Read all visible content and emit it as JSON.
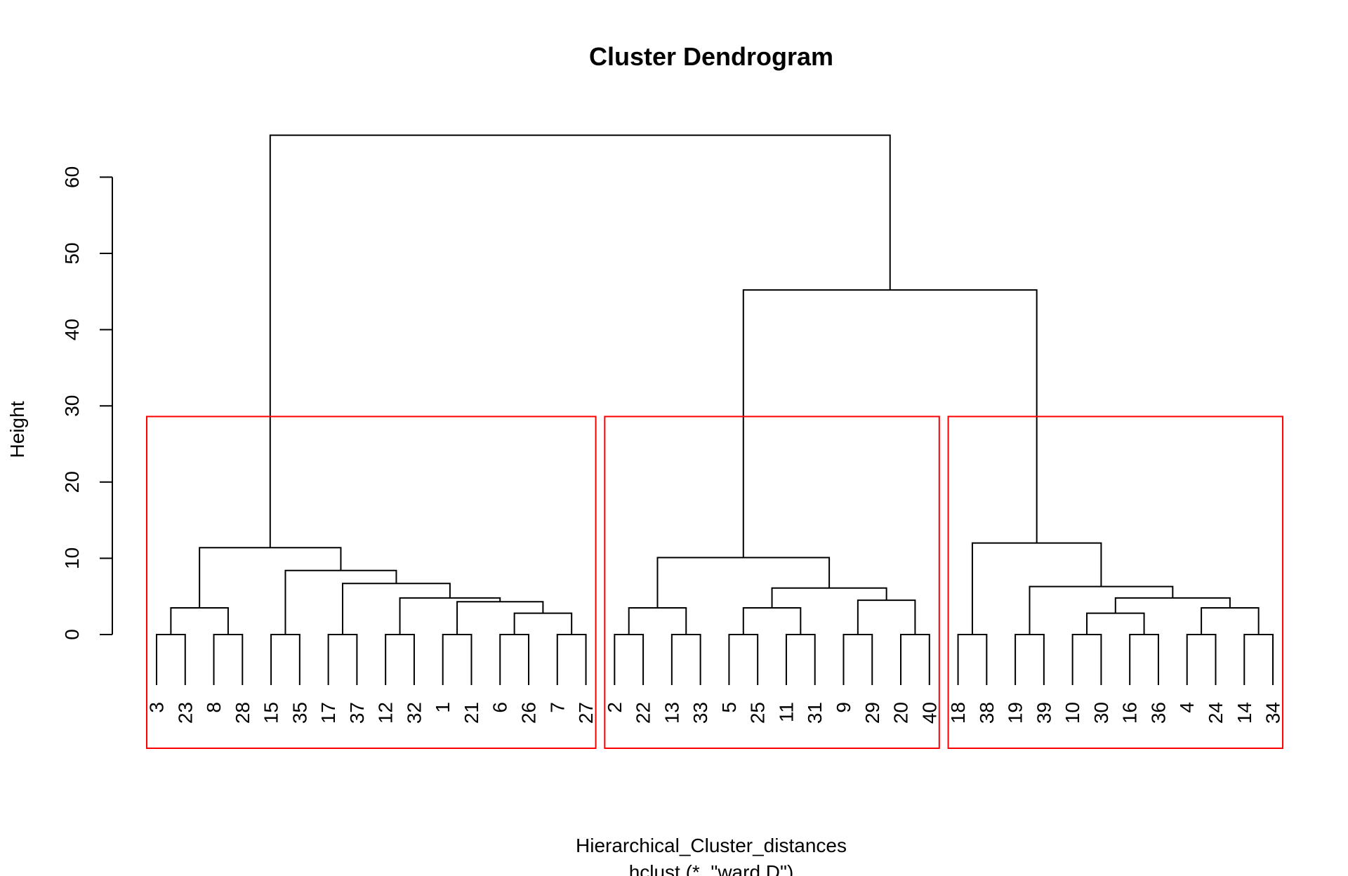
{
  "chart_data": {
    "type": "dendrogram",
    "title": "Cluster Dendrogram",
    "xlabel": "Hierarchical_Cluster_distances",
    "subtitle": "hclust (*, \"ward.D\")",
    "ylabel": "Height",
    "ylim": [
      0,
      65
    ],
    "yticks": [
      0,
      10,
      20,
      30,
      40,
      50,
      60
    ],
    "leaves": [
      3,
      23,
      8,
      28,
      15,
      35,
      17,
      37,
      12,
      32,
      1,
      21,
      6,
      26,
      7,
      27,
      2,
      22,
      13,
      33,
      5,
      25,
      11,
      31,
      9,
      29,
      20,
      40,
      18,
      38,
      19,
      39,
      10,
      30,
      16,
      36,
      4,
      24,
      14,
      34
    ],
    "merges": [
      {
        "a": "L0",
        "b": "L1",
        "height": 0
      },
      {
        "a": "L2",
        "b": "L3",
        "height": 0
      },
      {
        "a": "L4",
        "b": "L5",
        "height": 0
      },
      {
        "a": "L6",
        "b": "L7",
        "height": 0
      },
      {
        "a": "L8",
        "b": "L9",
        "height": 0
      },
      {
        "a": "L10",
        "b": "L11",
        "height": 0
      },
      {
        "a": "L12",
        "b": "L13",
        "height": 0
      },
      {
        "a": "L14",
        "b": "L15",
        "height": 0
      },
      {
        "a": "L16",
        "b": "L17",
        "height": 0
      },
      {
        "a": "L18",
        "b": "L19",
        "height": 0
      },
      {
        "a": "L20",
        "b": "L21",
        "height": 0
      },
      {
        "a": "L22",
        "b": "L23",
        "height": 0
      },
      {
        "a": "L24",
        "b": "L25",
        "height": 0
      },
      {
        "a": "L26",
        "b": "L27",
        "height": 0
      },
      {
        "a": "L28",
        "b": "L29",
        "height": 0
      },
      {
        "a": "L30",
        "b": "L31",
        "height": 0
      },
      {
        "a": "L32",
        "b": "L33",
        "height": 0
      },
      {
        "a": "L34",
        "b": "L35",
        "height": 0
      },
      {
        "a": "L36",
        "b": "L37",
        "height": 0
      },
      {
        "a": "L38",
        "b": "L39",
        "height": 0
      },
      {
        "a": "M6",
        "b": "M7",
        "height": 2.8
      },
      {
        "a": "M5",
        "b": "M20",
        "height": 4.3
      },
      {
        "a": "M4",
        "b": "M21",
        "height": 4.8
      },
      {
        "a": "M3",
        "b": "M22",
        "height": 6.7
      },
      {
        "a": "M2",
        "b": "M23",
        "height": 8.4
      },
      {
        "a": "M0",
        "b": "M1",
        "height": 3.5
      },
      {
        "a": "M25",
        "b": "M24",
        "height": 11.4
      },
      {
        "a": "M8",
        "b": "M9",
        "height": 3.5
      },
      {
        "a": "M10",
        "b": "M11",
        "height": 3.5
      },
      {
        "a": "M12",
        "b": "M13",
        "height": 4.5
      },
      {
        "a": "M28",
        "b": "M29",
        "height": 6.1
      },
      {
        "a": "M27",
        "b": "M30",
        "height": 10.1
      },
      {
        "a": "M16",
        "b": "M17",
        "height": 2.8
      },
      {
        "a": "M18",
        "b": "M19",
        "height": 3.5
      },
      {
        "a": "M32",
        "b": "M33",
        "height": 4.8
      },
      {
        "a": "M15",
        "b": "M34",
        "height": 6.3
      },
      {
        "a": "M14",
        "b": "M35",
        "height": 12.0
      },
      {
        "a": "M31",
        "b": "M36",
        "height": 45.2
      },
      {
        "a": "M26",
        "b": "M37",
        "height": 65.5
      }
    ],
    "cut_height": 28.6,
    "clusters": [
      {
        "from": 0,
        "to": 15
      },
      {
        "from": 16,
        "to": 27
      },
      {
        "from": 28,
        "to": 39
      }
    ],
    "colors": {
      "links": "#000000",
      "clusters": "#ff0000"
    }
  }
}
